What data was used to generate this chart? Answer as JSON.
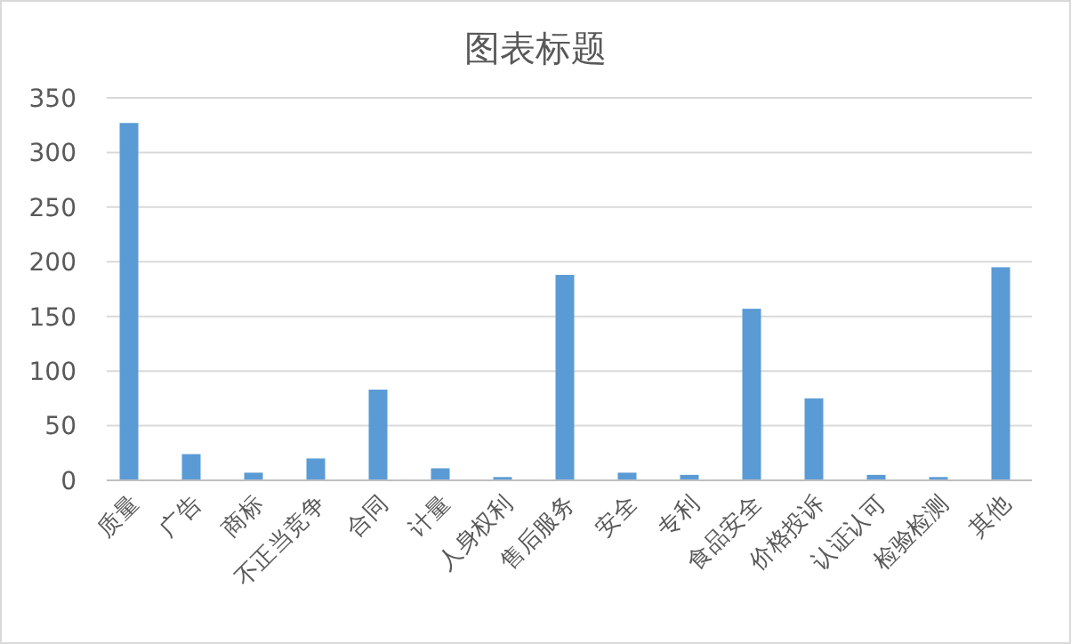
{
  "chart_data": {
    "type": "bar",
    "title": "图表标题",
    "categories": [
      "质量",
      "广告",
      "商标",
      "不正当竞争",
      "合同",
      "计量",
      "人身权利",
      "售后服务",
      "安全",
      "专利",
      "食品安全",
      "价格投诉",
      "认证认可",
      "检验检测",
      "其他"
    ],
    "values": [
      327,
      24,
      7,
      20,
      83,
      11,
      3,
      188,
      7,
      5,
      157,
      75,
      5,
      3,
      195
    ],
    "color": "#5b9bd5",
    "ylim": [
      0,
      350
    ],
    "yticks": [
      0,
      50,
      100,
      150,
      200,
      250,
      300,
      350
    ],
    "grid": "y"
  }
}
